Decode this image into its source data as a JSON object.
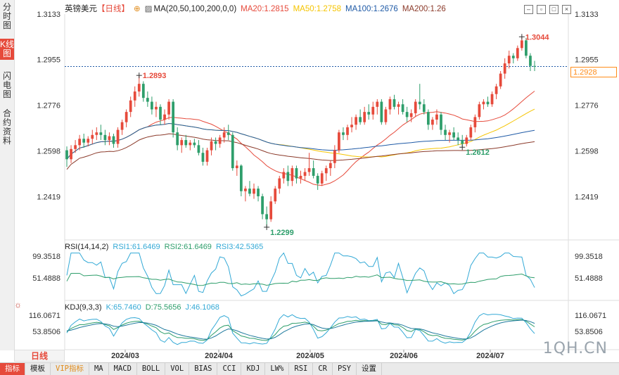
{
  "sidebar": {
    "tabs": [
      {
        "label": "分时图",
        "active": false
      },
      {
        "label": "K线图",
        "active": true
      },
      {
        "label": "闪电图",
        "active": false
      },
      {
        "label": "合约资料",
        "active": false
      }
    ]
  },
  "header": {
    "instrument": "英镑美元",
    "period_tag": "【日线】",
    "ma_label": "MA(20,50,100,200,0,0)",
    "ma20": "MA20:1.2815",
    "ma50": "MA50:1.2758",
    "ma100": "MA100:1.2676",
    "ma200": "MA200:1.26"
  },
  "window_icons": [
    "minimize-icon",
    "restore-icon",
    "maximize-icon",
    "close-icon"
  ],
  "price_axis_ticks": [
    "1.3133",
    "1.2955",
    "1.2776",
    "1.2598",
    "1.2419"
  ],
  "current_price": "1.2928",
  "annotations": {
    "high": "1.2893",
    "low": "1.2299",
    "recent_high": "1.3044",
    "recent_low": "1.2612"
  },
  "rsi": {
    "label": "RSI(14,14,2)",
    "rsi1": "RSI1:61.6469",
    "rsi2": "RSI2:61.6469",
    "rsi3": "RSI3:42.5365",
    "ticks": [
      "99.3518",
      "51.4888"
    ]
  },
  "kdj": {
    "label": "KDJ(9,3,3)",
    "k": "K:65.7460",
    "d": "D:75.5656",
    "j": "J:46.1068",
    "ticks": [
      "116.0671",
      "53.8506"
    ]
  },
  "period_button": "日线",
  "bottom_tabs": [
    "指标",
    "模板",
    "VIP指标",
    "MA",
    "MACD",
    "BOLL",
    "VOL",
    "BIAS",
    "CCI",
    "KDJ",
    "LW%",
    "RSI",
    "CR",
    "PSY",
    "设置"
  ],
  "watermark": "1QH.CN",
  "colors": {
    "up": "#e64a3b",
    "down": "#2e9e6b",
    "ma20": "#e64a3b",
    "ma50": "#f5c400",
    "ma100": "#1f5aa6",
    "ma200": "#8b3a2a",
    "accent": "#ff8c1a",
    "rsi": "#33a9d6"
  },
  "chart_data": {
    "type": "candlestick",
    "x_ticks": [
      "2024/03",
      "2024/04",
      "2024/05",
      "2024/06",
      "2024/07"
    ],
    "ylim": [
      1.2252,
      1.3133
    ],
    "candles": [
      {
        "o": 1.26,
        "h": 1.2615,
        "l": 1.2535,
        "c": 1.2565
      },
      {
        "o": 1.2565,
        "h": 1.262,
        "l": 1.255,
        "c": 1.2605
      },
      {
        "o": 1.2605,
        "h": 1.264,
        "l": 1.259,
        "c": 1.262
      },
      {
        "o": 1.262,
        "h": 1.266,
        "l": 1.26,
        "c": 1.2645
      },
      {
        "o": 1.2645,
        "h": 1.2665,
        "l": 1.261,
        "c": 1.263
      },
      {
        "o": 1.263,
        "h": 1.2655,
        "l": 1.2615,
        "c": 1.2645
      },
      {
        "o": 1.2645,
        "h": 1.268,
        "l": 1.2625,
        "c": 1.266
      },
      {
        "o": 1.266,
        "h": 1.269,
        "l": 1.264,
        "c": 1.267
      },
      {
        "o": 1.267,
        "h": 1.27,
        "l": 1.264,
        "c": 1.266
      },
      {
        "o": 1.266,
        "h": 1.268,
        "l": 1.262,
        "c": 1.264
      },
      {
        "o": 1.264,
        "h": 1.267,
        "l": 1.262,
        "c": 1.2655
      },
      {
        "o": 1.2655,
        "h": 1.2665,
        "l": 1.261,
        "c": 1.2625
      },
      {
        "o": 1.2625,
        "h": 1.269,
        "l": 1.261,
        "c": 1.268
      },
      {
        "o": 1.268,
        "h": 1.272,
        "l": 1.266,
        "c": 1.271
      },
      {
        "o": 1.271,
        "h": 1.276,
        "l": 1.269,
        "c": 1.275
      },
      {
        "o": 1.275,
        "h": 1.281,
        "l": 1.273,
        "c": 1.2795
      },
      {
        "o": 1.2795,
        "h": 1.285,
        "l": 1.277,
        "c": 1.283
      },
      {
        "o": 1.283,
        "h": 1.2893,
        "l": 1.281,
        "c": 1.286
      },
      {
        "o": 1.286,
        "h": 1.287,
        "l": 1.279,
        "c": 1.2805
      },
      {
        "o": 1.2805,
        "h": 1.283,
        "l": 1.277,
        "c": 1.279
      },
      {
        "o": 1.279,
        "h": 1.281,
        "l": 1.274,
        "c": 1.276
      },
      {
        "o": 1.276,
        "h": 1.279,
        "l": 1.273,
        "c": 1.277
      },
      {
        "o": 1.277,
        "h": 1.278,
        "l": 1.27,
        "c": 1.272
      },
      {
        "o": 1.272,
        "h": 1.276,
        "l": 1.27,
        "c": 1.274
      },
      {
        "o": 1.274,
        "h": 1.28,
        "l": 1.272,
        "c": 1.279
      },
      {
        "o": 1.279,
        "h": 1.28,
        "l": 1.265,
        "c": 1.267
      },
      {
        "o": 1.267,
        "h": 1.269,
        "l": 1.26,
        "c": 1.262
      },
      {
        "o": 1.262,
        "h": 1.265,
        "l": 1.259,
        "c": 1.264
      },
      {
        "o": 1.264,
        "h": 1.266,
        "l": 1.261,
        "c": 1.262
      },
      {
        "o": 1.262,
        "h": 1.264,
        "l": 1.26,
        "c": 1.263
      },
      {
        "o": 1.263,
        "h": 1.2645,
        "l": 1.261,
        "c": 1.262
      },
      {
        "o": 1.262,
        "h": 1.264,
        "l": 1.258,
        "c": 1.259
      },
      {
        "o": 1.259,
        "h": 1.261,
        "l": 1.254,
        "c": 1.2555
      },
      {
        "o": 1.2555,
        "h": 1.261,
        "l": 1.254,
        "c": 1.26
      },
      {
        "o": 1.26,
        "h": 1.265,
        "l": 1.258,
        "c": 1.2635
      },
      {
        "o": 1.2635,
        "h": 1.265,
        "l": 1.26,
        "c": 1.2625
      },
      {
        "o": 1.2625,
        "h": 1.266,
        "l": 1.261,
        "c": 1.265
      },
      {
        "o": 1.265,
        "h": 1.269,
        "l": 1.263,
        "c": 1.267
      },
      {
        "o": 1.267,
        "h": 1.27,
        "l": 1.264,
        "c": 1.266
      },
      {
        "o": 1.266,
        "h": 1.267,
        "l": 1.252,
        "c": 1.253
      },
      {
        "o": 1.253,
        "h": 1.256,
        "l": 1.25,
        "c": 1.254
      },
      {
        "o": 1.254,
        "h": 1.2545,
        "l": 1.242,
        "c": 1.244
      },
      {
        "o": 1.244,
        "h": 1.246,
        "l": 1.24,
        "c": 1.245
      },
      {
        "o": 1.245,
        "h": 1.248,
        "l": 1.242,
        "c": 1.243
      },
      {
        "o": 1.243,
        "h": 1.247,
        "l": 1.241,
        "c": 1.245
      },
      {
        "o": 1.245,
        "h": 1.246,
        "l": 1.24,
        "c": 1.242
      },
      {
        "o": 1.242,
        "h": 1.243,
        "l": 1.233,
        "c": 1.235
      },
      {
        "o": 1.235,
        "h": 1.238,
        "l": 1.2299,
        "c": 1.233
      },
      {
        "o": 1.233,
        "h": 1.242,
        "l": 1.232,
        "c": 1.24
      },
      {
        "o": 1.24,
        "h": 1.246,
        "l": 1.239,
        "c": 1.245
      },
      {
        "o": 1.245,
        "h": 1.25,
        "l": 1.243,
        "c": 1.249
      },
      {
        "o": 1.249,
        "h": 1.253,
        "l": 1.247,
        "c": 1.2515
      },
      {
        "o": 1.2515,
        "h": 1.254,
        "l": 1.246,
        "c": 1.248
      },
      {
        "o": 1.248,
        "h": 1.254,
        "l": 1.246,
        "c": 1.253
      },
      {
        "o": 1.253,
        "h": 1.254,
        "l": 1.247,
        "c": 1.249
      },
      {
        "o": 1.249,
        "h": 1.252,
        "l": 1.247,
        "c": 1.25
      },
      {
        "o": 1.25,
        "h": 1.253,
        "l": 1.248,
        "c": 1.2515
      },
      {
        "o": 1.2515,
        "h": 1.259,
        "l": 1.25,
        "c": 1.253
      },
      {
        "o": 1.253,
        "h": 1.256,
        "l": 1.249,
        "c": 1.25
      },
      {
        "o": 1.25,
        "h": 1.251,
        "l": 1.2445,
        "c": 1.247
      },
      {
        "o": 1.247,
        "h": 1.252,
        "l": 1.246,
        "c": 1.251
      },
      {
        "o": 1.251,
        "h": 1.254,
        "l": 1.248,
        "c": 1.253
      },
      {
        "o": 1.253,
        "h": 1.256,
        "l": 1.25,
        "c": 1.255
      },
      {
        "o": 1.255,
        "h": 1.262,
        "l": 1.253,
        "c": 1.26
      },
      {
        "o": 1.26,
        "h": 1.268,
        "l": 1.259,
        "c": 1.267
      },
      {
        "o": 1.267,
        "h": 1.269,
        "l": 1.264,
        "c": 1.266
      },
      {
        "o": 1.266,
        "h": 1.27,
        "l": 1.264,
        "c": 1.269
      },
      {
        "o": 1.269,
        "h": 1.273,
        "l": 1.267,
        "c": 1.27
      },
      {
        "o": 1.27,
        "h": 1.274,
        "l": 1.268,
        "c": 1.273
      },
      {
        "o": 1.273,
        "h": 1.276,
        "l": 1.27,
        "c": 1.271
      },
      {
        "o": 1.271,
        "h": 1.277,
        "l": 1.27,
        "c": 1.275
      },
      {
        "o": 1.275,
        "h": 1.278,
        "l": 1.272,
        "c": 1.274
      },
      {
        "o": 1.274,
        "h": 1.279,
        "l": 1.272,
        "c": 1.277
      },
      {
        "o": 1.277,
        "h": 1.28,
        "l": 1.274,
        "c": 1.279
      },
      {
        "o": 1.279,
        "h": 1.28,
        "l": 1.27,
        "c": 1.271
      },
      {
        "o": 1.271,
        "h": 1.277,
        "l": 1.27,
        "c": 1.276
      },
      {
        "o": 1.276,
        "h": 1.281,
        "l": 1.274,
        "c": 1.28
      },
      {
        "o": 1.28,
        "h": 1.2817,
        "l": 1.276,
        "c": 1.277
      },
      {
        "o": 1.277,
        "h": 1.279,
        "l": 1.274,
        "c": 1.278
      },
      {
        "o": 1.278,
        "h": 1.28,
        "l": 1.274,
        "c": 1.275
      },
      {
        "o": 1.275,
        "h": 1.277,
        "l": 1.271,
        "c": 1.273
      },
      {
        "o": 1.273,
        "h": 1.276,
        "l": 1.271,
        "c": 1.2745
      },
      {
        "o": 1.2745,
        "h": 1.28,
        "l": 1.273,
        "c": 1.279
      },
      {
        "o": 1.279,
        "h": 1.286,
        "l": 1.276,
        "c": 1.278
      },
      {
        "o": 1.278,
        "h": 1.28,
        "l": 1.274,
        "c": 1.275
      },
      {
        "o": 1.275,
        "h": 1.276,
        "l": 1.268,
        "c": 1.27
      },
      {
        "o": 1.27,
        "h": 1.273,
        "l": 1.268,
        "c": 1.272
      },
      {
        "o": 1.272,
        "h": 1.276,
        "l": 1.27,
        "c": 1.274
      },
      {
        "o": 1.274,
        "h": 1.275,
        "l": 1.266,
        "c": 1.268
      },
      {
        "o": 1.268,
        "h": 1.27,
        "l": 1.264,
        "c": 1.266
      },
      {
        "o": 1.266,
        "h": 1.268,
        "l": 1.263,
        "c": 1.267
      },
      {
        "o": 1.267,
        "h": 1.269,
        "l": 1.264,
        "c": 1.265
      },
      {
        "o": 1.265,
        "h": 1.267,
        "l": 1.262,
        "c": 1.264
      },
      {
        "o": 1.264,
        "h": 1.266,
        "l": 1.2612,
        "c": 1.2625
      },
      {
        "o": 1.2625,
        "h": 1.266,
        "l": 1.2615,
        "c": 1.265
      },
      {
        "o": 1.265,
        "h": 1.27,
        "l": 1.264,
        "c": 1.269
      },
      {
        "o": 1.269,
        "h": 1.274,
        "l": 1.267,
        "c": 1.273
      },
      {
        "o": 1.273,
        "h": 1.279,
        "l": 1.272,
        "c": 1.278
      },
      {
        "o": 1.278,
        "h": 1.28,
        "l": 1.276,
        "c": 1.279
      },
      {
        "o": 1.279,
        "h": 1.281,
        "l": 1.277,
        "c": 1.278
      },
      {
        "o": 1.278,
        "h": 1.283,
        "l": 1.277,
        "c": 1.282
      },
      {
        "o": 1.282,
        "h": 1.286,
        "l": 1.28,
        "c": 1.285
      },
      {
        "o": 1.285,
        "h": 1.291,
        "l": 1.284,
        "c": 1.29
      },
      {
        "o": 1.29,
        "h": 1.296,
        "l": 1.288,
        "c": 1.294
      },
      {
        "o": 1.294,
        "h": 1.299,
        "l": 1.292,
        "c": 1.297
      },
      {
        "o": 1.297,
        "h": 1.298,
        "l": 1.294,
        "c": 1.296
      },
      {
        "o": 1.296,
        "h": 1.301,
        "l": 1.295,
        "c": 1.3
      },
      {
        "o": 1.3,
        "h": 1.3044,
        "l": 1.299,
        "c": 1.303
      },
      {
        "o": 1.303,
        "h": 1.304,
        "l": 1.296,
        "c": 1.297
      },
      {
        "o": 1.297,
        "h": 1.298,
        "l": 1.291,
        "c": 1.293
      },
      {
        "o": 1.293,
        "h": 1.295,
        "l": 1.291,
        "c": 1.2928
      }
    ]
  }
}
